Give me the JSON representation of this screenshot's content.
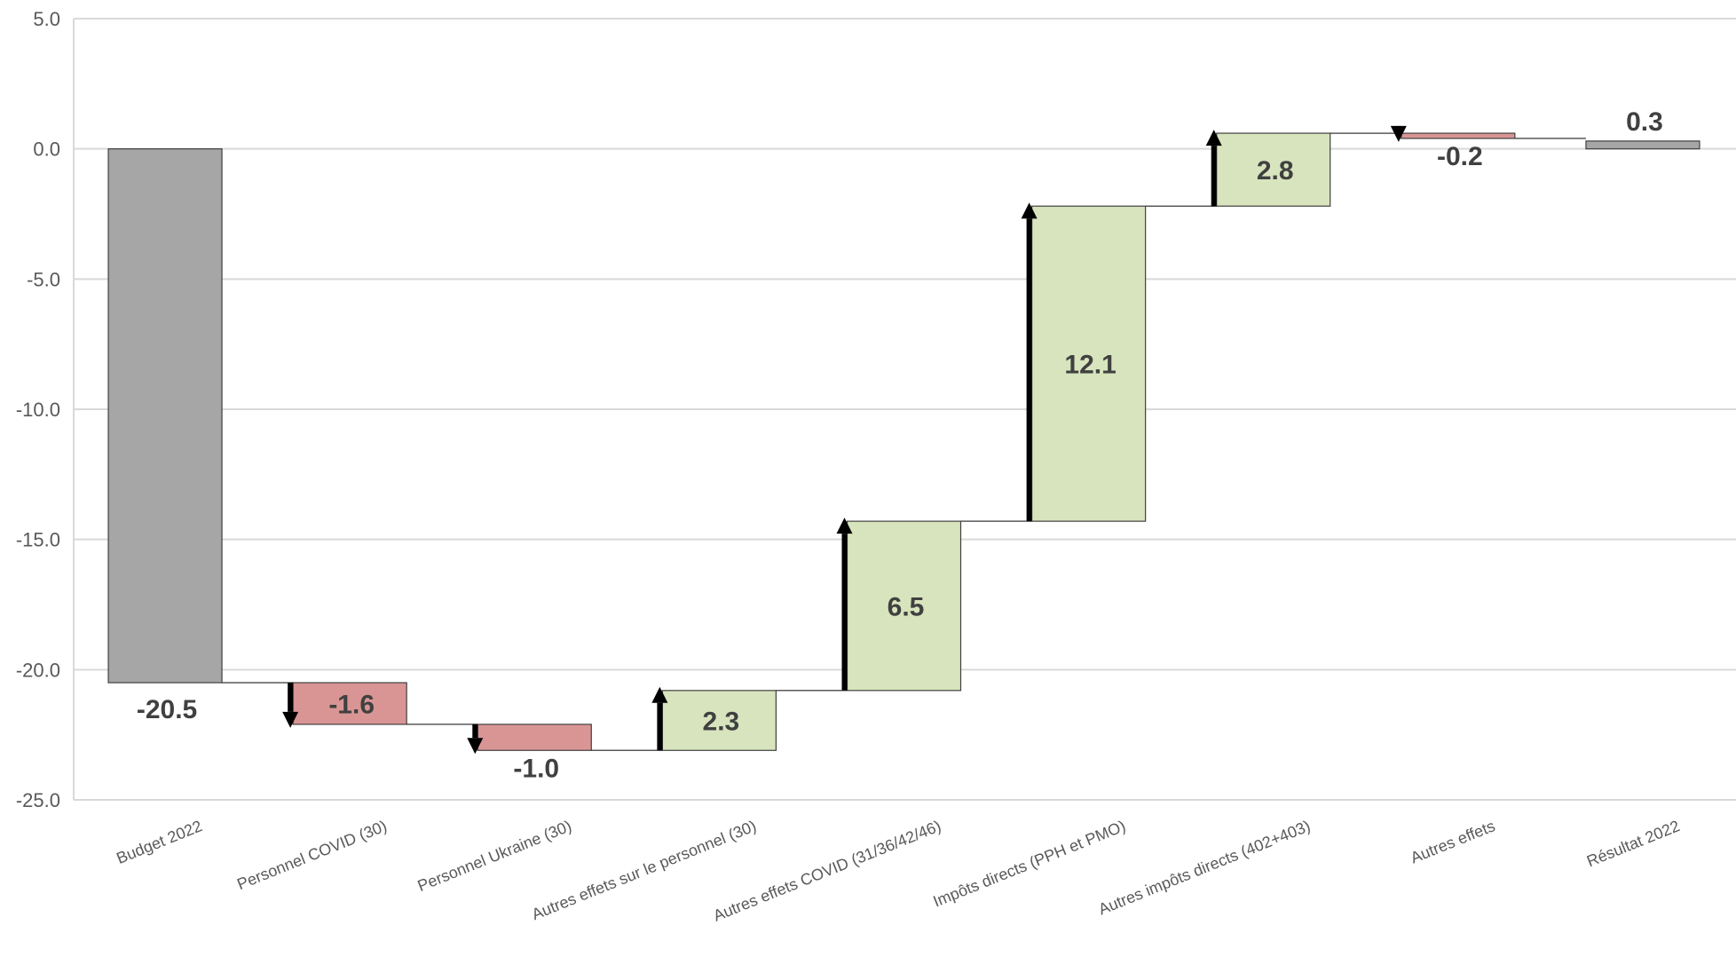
{
  "chart_data": {
    "type": "bar",
    "subtype": "waterfall",
    "title": "",
    "xlabel": "",
    "ylabel": "",
    "ylim": [
      -25,
      5
    ],
    "yticks": [
      5,
      0,
      -5,
      -10,
      -15,
      -20,
      -25
    ],
    "ytick_labels": [
      "5.0",
      "0.0",
      "-5.0",
      "-10.0",
      "-15.0",
      "-20.0",
      "-25.0"
    ],
    "grid": true,
    "legend": "none",
    "categories": [
      "Budget 2022",
      "Personnel COVID (30)",
      "Personnel Ukraine (30)",
      "Autres effets sur le personnel (30)",
      "Autres effets COVID (31/36/42/46)",
      "Impôts directs (PPH et PMO)",
      "Autres impôts directs (402+403)",
      "Autres effets",
      "Résultat 2022"
    ],
    "values": [
      -20.5,
      -1.6,
      -1.0,
      2.3,
      6.5,
      12.1,
      2.8,
      -0.2,
      0.3
    ],
    "value_labels": [
      "-20.5",
      "-1.6",
      "-1.0",
      "2.3",
      "6.5",
      "12.1",
      "2.8",
      "-0.2",
      "0.3"
    ],
    "bar_kinds": [
      "total",
      "delta",
      "delta",
      "delta",
      "delta",
      "delta",
      "delta",
      "delta",
      "total"
    ],
    "colors": {
      "total": "#a6a6a6",
      "negative": "#d99594",
      "positive": "#d7e4bd",
      "arrow": "#000000",
      "grid": "#d9d9d9"
    }
  }
}
